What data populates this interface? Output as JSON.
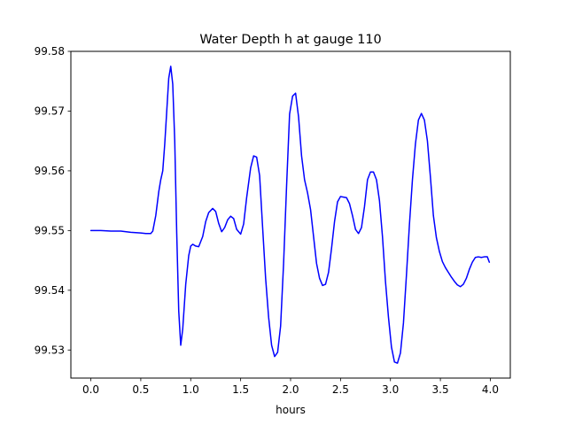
{
  "chart_data": {
    "type": "line",
    "title": "Water Depth h at gauge 110",
    "xlabel": "hours",
    "ylabel": "",
    "xlim": [
      -0.2,
      4.2
    ],
    "ylim": [
      99.5253,
      99.58
    ],
    "xticks": [
      0.0,
      0.5,
      1.0,
      1.5,
      2.0,
      2.5,
      3.0,
      3.5,
      4.0
    ],
    "xtick_labels": [
      "0.0",
      "0.5",
      "1.0",
      "1.5",
      "2.0",
      "2.5",
      "3.0",
      "3.5",
      "4.0"
    ],
    "yticks": [
      99.53,
      99.54,
      99.55,
      99.56,
      99.57,
      99.58
    ],
    "ytick_labels": [
      "99.53",
      "99.54",
      "99.55",
      "99.56",
      "99.57",
      "99.58"
    ],
    "grid": false,
    "series": [
      {
        "color": "#0000ff",
        "x": [
          0.0,
          0.1,
          0.2,
          0.3,
          0.4,
          0.5,
          0.55,
          0.6,
          0.62,
          0.65,
          0.68,
          0.7,
          0.72,
          0.74,
          0.76,
          0.78,
          0.8,
          0.82,
          0.84,
          0.86,
          0.88,
          0.9,
          0.92,
          0.95,
          0.98,
          1.0,
          1.02,
          1.05,
          1.08,
          1.12,
          1.15,
          1.18,
          1.22,
          1.25,
          1.28,
          1.31,
          1.34,
          1.37,
          1.4,
          1.43,
          1.46,
          1.5,
          1.53,
          1.56,
          1.6,
          1.63,
          1.66,
          1.69,
          1.72,
          1.75,
          1.78,
          1.81,
          1.84,
          1.87,
          1.9,
          1.93,
          1.96,
          1.99,
          2.02,
          2.05,
          2.08,
          2.11,
          2.14,
          2.17,
          2.2,
          2.23,
          2.26,
          2.29,
          2.32,
          2.35,
          2.38,
          2.41,
          2.44,
          2.47,
          2.5,
          2.53,
          2.56,
          2.59,
          2.62,
          2.65,
          2.68,
          2.71,
          2.74,
          2.77,
          2.8,
          2.83,
          2.86,
          2.89,
          2.92,
          2.95,
          2.98,
          3.01,
          3.04,
          3.07,
          3.1,
          3.13,
          3.16,
          3.19,
          3.22,
          3.25,
          3.28,
          3.31,
          3.34,
          3.37,
          3.4,
          3.43,
          3.46,
          3.49,
          3.52,
          3.55,
          3.58,
          3.61,
          3.64,
          3.67,
          3.7,
          3.73,
          3.76,
          3.79,
          3.82,
          3.85,
          3.88,
          3.91,
          3.94,
          3.97,
          3.99
        ],
        "y": [
          99.55,
          99.55,
          99.5499,
          99.5499,
          99.5497,
          99.5496,
          99.5495,
          99.5495,
          99.5499,
          99.5525,
          99.5565,
          99.5585,
          99.56,
          99.5645,
          99.57,
          99.5755,
          99.5775,
          99.5745,
          99.565,
          99.5495,
          99.5365,
          99.5308,
          99.5335,
          99.541,
          99.5458,
          99.5474,
          99.5477,
          99.5474,
          99.5473,
          99.549,
          99.5515,
          99.553,
          99.5537,
          99.5532,
          99.5512,
          99.5498,
          99.5505,
          99.5518,
          99.5524,
          99.552,
          99.5502,
          99.5494,
          99.5511,
          99.5555,
          99.5605,
          99.5625,
          99.5623,
          99.5592,
          99.5505,
          99.542,
          99.5355,
          99.5308,
          99.5289,
          99.5296,
          99.534,
          99.5445,
          99.5575,
          99.5695,
          99.5725,
          99.573,
          99.569,
          99.5625,
          99.5585,
          99.5563,
          99.5535,
          99.549,
          99.5445,
          99.542,
          99.5408,
          99.541,
          99.543,
          99.547,
          99.5515,
          99.5548,
          99.5557,
          99.5556,
          99.5555,
          99.5545,
          99.5525,
          99.5502,
          99.5495,
          99.5505,
          99.554,
          99.5585,
          99.5598,
          99.5598,
          99.5585,
          99.555,
          99.549,
          99.5415,
          99.5355,
          99.5305,
          99.528,
          99.5278,
          99.5295,
          99.5345,
          99.5425,
          99.551,
          99.5585,
          99.5645,
          99.5685,
          99.5696,
          99.5685,
          99.565,
          99.559,
          99.5525,
          99.5488,
          99.5465,
          99.5448,
          99.5438,
          99.543,
          99.5422,
          99.5415,
          99.5409,
          99.5406,
          99.541,
          99.542,
          99.5435,
          99.5447,
          99.5455,
          99.5456,
          99.5455,
          99.5456,
          99.5456,
          99.5447
        ]
      }
    ]
  }
}
